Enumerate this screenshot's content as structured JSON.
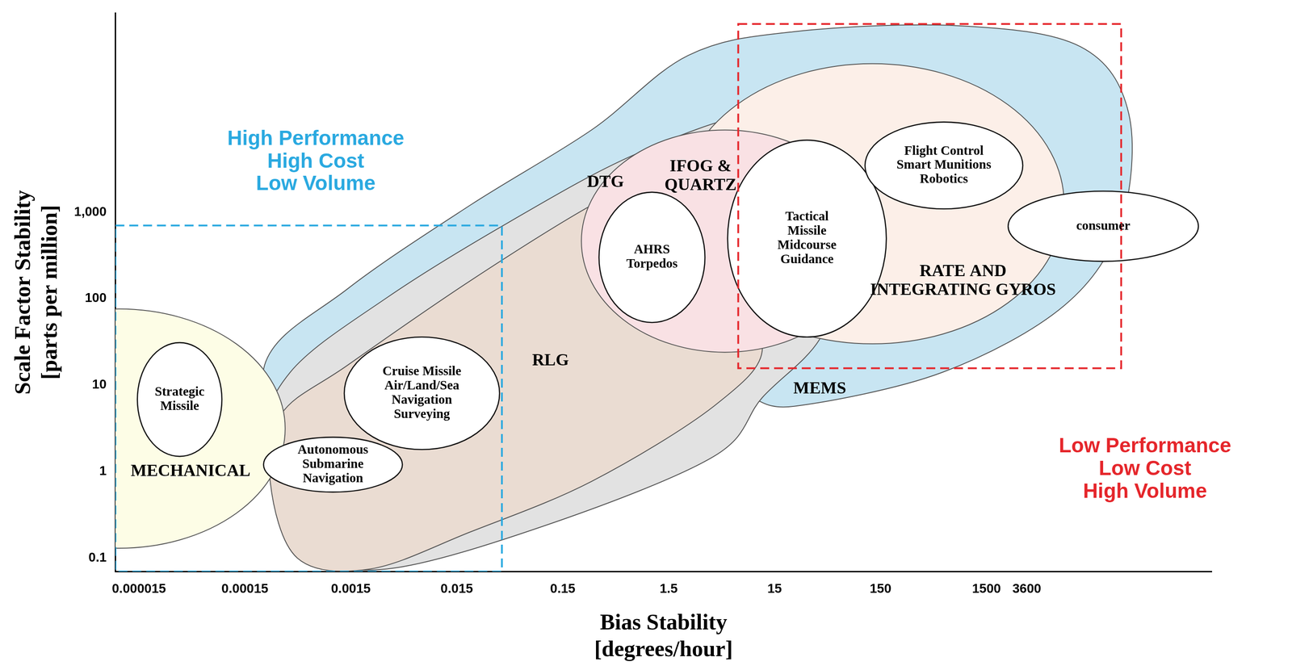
{
  "chart_data": {
    "type": "scatter",
    "xlabel": [
      "Bias Stability",
      "[degrees/hour]"
    ],
    "ylabel": [
      "Scale Factor Stability",
      "[parts per million]"
    ],
    "log": true,
    "grid": false,
    "xlim": [
      9e-06,
      200000
    ],
    "xticks": [
      1.5e-05,
      0.00015,
      0.0015,
      0.015,
      0.15,
      1.5,
      15,
      150,
      1500,
      3600
    ],
    "ylim": [
      0.07,
      200000
    ],
    "yticks": [
      0.1,
      1,
      10,
      100,
      {
        "value": 1000,
        "label": "1,000"
      }
    ],
    "series": [
      {
        "name": "MEMS",
        "type": "area",
        "color": "#c8e5f2",
        "x": [
          0.00023,
          0.0014,
          0.02,
          0.28,
          2.3,
          23,
          810,
          11500,
          33000,
          28000,
          8100,
          570,
          23,
          8.1,
          4.0,
          0.115,
          0.0033,
          0.0004
        ],
        "values": [
          17,
          130,
          1200,
          8900,
          65000,
          122000,
          143000,
          82000,
          13800,
          770,
          83,
          14,
          5.7,
          7.2,
          4.6,
          0.5,
          0.2,
          0.77
        ],
        "label_at": {
          "x": 40,
          "y": 9
        }
      },
      {
        "name": "DTG",
        "type": "area",
        "color": "#e2e2e2",
        "x": [
          0.00023,
          0.0004,
          0.0033,
          0.047,
          0.68,
          9.6,
          57,
          96,
          68,
          40,
          11.5,
          4.0,
          0.115,
          0.0033,
          0.00057
        ],
        "values": [
          1.9,
          14,
          103,
          770,
          4500,
          13800,
          9900,
          3600,
          250,
          34,
          7.2,
          1.5,
          0.25,
          0.075,
          0.13
        ],
        "label_at": {
          "x": 0.38,
          "y": 2200
        }
      },
      {
        "name": "RLG",
        "type": "area",
        "color": "#eadcd2",
        "x": [
          0.00026,
          0.00033,
          0.0014,
          0.02,
          0.28,
          0.96,
          2.3,
          4.0,
          11.5,
          4.0,
          0.28,
          0.02,
          0.0023,
          0.00047
        ],
        "values": [
          0.77,
          4.6,
          17,
          160,
          1200,
          2300,
          1200,
          130,
          27,
          5.7,
          0.77,
          0.2,
          0.075,
          0.1
        ],
        "label_at": {
          "x": 0.115,
          "y": 19
        }
      },
      {
        "name": "MECHANICAL",
        "type": "ellipse",
        "color": "#fdfde6",
        "xlim": [
          2.6e-07,
          0.00036
        ],
        "ylim": [
          0.13,
          76
        ],
        "label_at": {
          "x": 4.6e-05,
          "y": 1.0
        }
      },
      {
        "name": [
          "RATE AND",
          "INTEGRATING GYROS"
        ],
        "type": "ellipse",
        "color": "#fcefe8",
        "xlim": [
          1.95,
          8100
        ],
        "ylim": [
          30,
          52000
        ],
        "label_at": {
          "x": 900,
          "y": 160
        }
      },
      {
        "name": [
          "IFOG &",
          "QUARTZ"
        ],
        "type": "ellipse",
        "color": "#f9e1e4",
        "xlim": [
          0.225,
          115
        ],
        "ylim": [
          24,
          8900
        ],
        "label_at": {
          "x": 3.0,
          "y": 2600
        }
      },
      {
        "name": [
          "Strategic",
          "Missile"
        ],
        "type": "ellipse",
        "color": "#ffffff",
        "xlim": [
          1.45e-05,
          9.1e-05
        ],
        "ylim": [
          1.5,
          31
        ]
      },
      {
        "name": [
          "Autonomous",
          "Submarine",
          "Navigation"
        ],
        "type": "ellipse",
        "color": "#ffffff",
        "xlim": [
          0.000225,
          0.0046
        ],
        "ylim": [
          0.58,
          2.5
        ]
      },
      {
        "name": [
          "Cruise Missile",
          "Air/Land/Sea",
          "Navigation",
          "Surveying"
        ],
        "type": "ellipse",
        "color": "#ffffff",
        "xlim": [
          0.0013,
          0.038
        ],
        "ylim": [
          1.8,
          36
        ]
      },
      {
        "name": [
          "AHRS",
          "Torpedos"
        ],
        "type": "ellipse",
        "color": "#ffffff",
        "xlim": [
          0.33,
          3.3
        ],
        "ylim": [
          53,
          1700
        ]
      },
      {
        "name": [
          "Tactical",
          "Missile",
          "Midcourse",
          "Guidance"
        ],
        "type": "ellipse",
        "color": "#ffffff",
        "xlim": [
          5.4,
          170
        ],
        "ylim": [
          36,
          6800
        ]
      },
      {
        "name": [
          "Flight Control",
          "Smart Munitions",
          "Robotics"
        ],
        "type": "ellipse",
        "color": "#ffffff",
        "xlim": [
          107,
          3300
        ],
        "ylim": [
          1090,
          11000
        ]
      },
      {
        "name": "consumer",
        "type": "ellipse",
        "color": "#ffffff",
        "xlim": [
          2400,
          150000
        ],
        "ylim": [
          270,
          1750
        ]
      }
    ],
    "boxes": [
      {
        "text": [
          "High Performance",
          "High Cost",
          "Low Volume"
        ],
        "color": "#2aa9e0",
        "line_style": "dashed",
        "xlim": [
          9e-06,
          0.04
        ],
        "ylim": [
          0.07,
          700
        ],
        "text_at": {
          "x": 0.0007,
          "y": 3800
        }
      },
      {
        "text": [
          "Low Performance",
          "Low Cost",
          "High Volume"
        ],
        "color": "#e5262b",
        "line_style": "dashed",
        "xlim": [
          6.8,
          28000
        ],
        "ylim": [
          15.7,
          150000
        ],
        "text_at": {
          "x": 47000,
          "y": 1.06
        }
      }
    ]
  }
}
